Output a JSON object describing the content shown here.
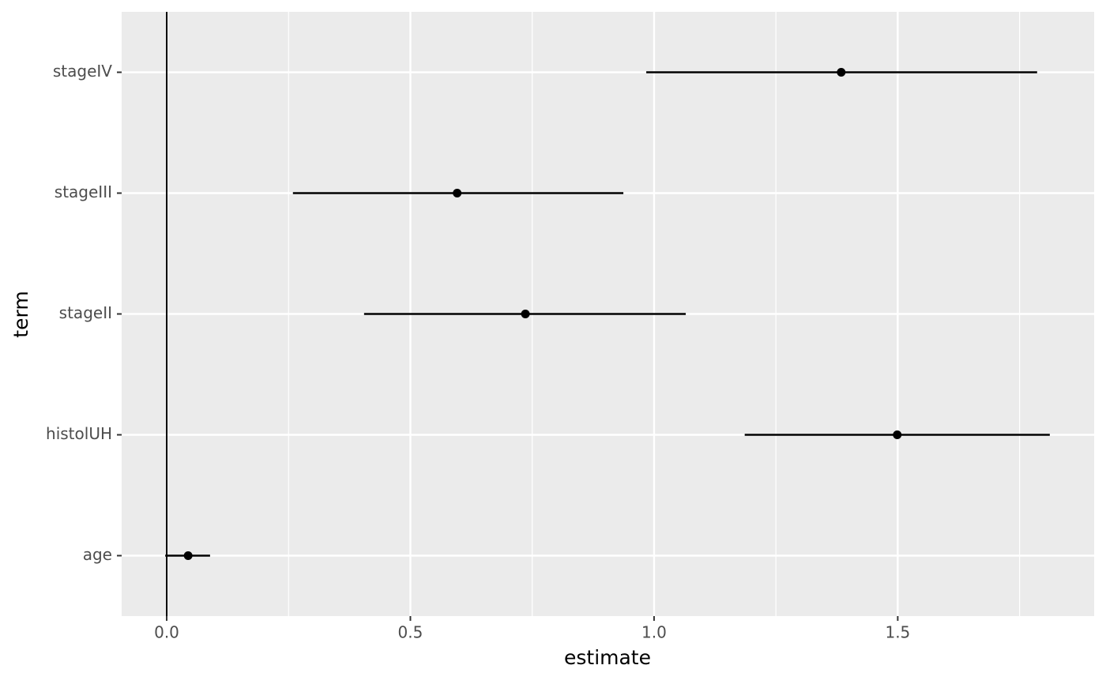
{
  "chart_data": {
    "type": "pointrange",
    "x_label": "estimate",
    "y_label": "term",
    "categories": [
      "age",
      "histolUH",
      "stageII",
      "stageIII",
      "stageIV"
    ],
    "values": [
      0.044,
      1.499,
      0.736,
      0.596,
      1.384
    ],
    "lower": [
      -0.003,
      1.186,
      0.405,
      0.259,
      0.984
    ],
    "upper": [
      0.089,
      1.812,
      1.065,
      0.937,
      1.786
    ],
    "color": "#000000",
    "xlim": [
      -0.0924,
      1.903
    ],
    "xticks": [
      {
        "value": 0,
        "label": "0.0"
      },
      {
        "value": 0.5,
        "label": "0.5"
      },
      {
        "value": 1,
        "label": "1.0"
      },
      {
        "value": 1.5,
        "label": "1.5"
      }
    ],
    "xminor": [
      0.25,
      0.75,
      1.25,
      1.75
    ],
    "vline": 0,
    "grid": true
  }
}
